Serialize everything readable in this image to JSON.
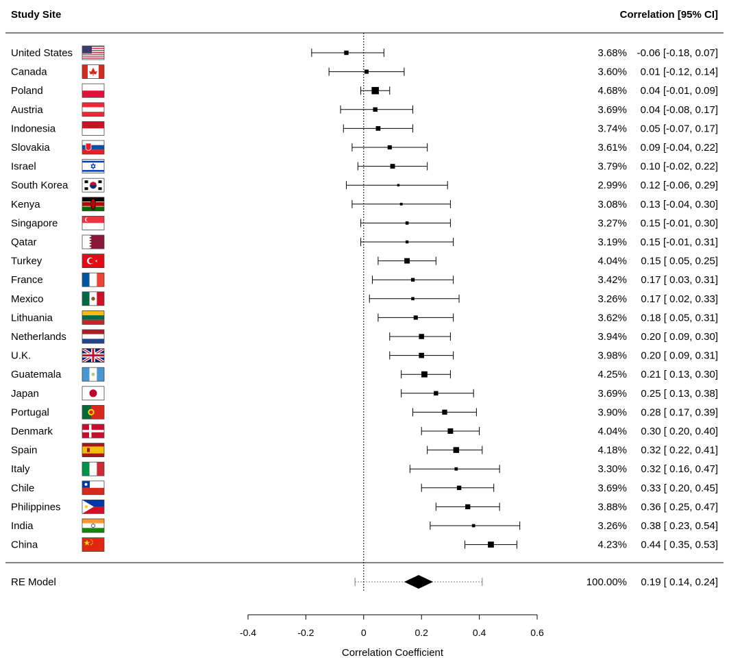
{
  "chart_data": {
    "type": "forest",
    "column_headers": {
      "left": "Study Site",
      "right": "Correlation [95% CI]"
    },
    "xlabel": "Correlation Coefficient",
    "xlim": [
      -0.4,
      0.6
    ],
    "xticks": [
      -0.4,
      -0.2,
      0,
      0.2,
      0.4,
      0.6
    ],
    "xtick_labels": [
      "-0.4",
      "-0.2",
      "0",
      "0.2",
      "0.4",
      "0.6"
    ],
    "reference_line": 0,
    "studies": [
      {
        "site": "United States",
        "flag": "united-states",
        "weight": "3.68%",
        "ci_text": "-0.06 [-0.18, 0.07]",
        "est": -0.06,
        "lo": -0.18,
        "hi": 0.07,
        "w": 3.68
      },
      {
        "site": "Canada",
        "flag": "canada",
        "weight": "3.60%",
        "ci_text": "0.01 [-0.12, 0.14]",
        "est": 0.01,
        "lo": -0.12,
        "hi": 0.14,
        "w": 3.6
      },
      {
        "site": "Poland",
        "flag": "poland",
        "weight": "4.68%",
        "ci_text": "0.04 [-0.01, 0.09]",
        "est": 0.04,
        "lo": -0.01,
        "hi": 0.09,
        "w": 4.68
      },
      {
        "site": "Austria",
        "flag": "austria",
        "weight": "3.69%",
        "ci_text": "0.04 [-0.08, 0.17]",
        "est": 0.04,
        "lo": -0.08,
        "hi": 0.17,
        "w": 3.69
      },
      {
        "site": "Indonesia",
        "flag": "indonesia",
        "weight": "3.74%",
        "ci_text": "0.05 [-0.07, 0.17]",
        "est": 0.05,
        "lo": -0.07,
        "hi": 0.17,
        "w": 3.74
      },
      {
        "site": "Slovakia",
        "flag": "slovakia",
        "weight": "3.61%",
        "ci_text": "0.09 [-0.04, 0.22]",
        "est": 0.09,
        "lo": -0.04,
        "hi": 0.22,
        "w": 3.61
      },
      {
        "site": "Israel",
        "flag": "israel",
        "weight": "3.79%",
        "ci_text": "0.10 [-0.02, 0.22]",
        "est": 0.1,
        "lo": -0.02,
        "hi": 0.22,
        "w": 3.79
      },
      {
        "site": "South Korea",
        "flag": "south-korea",
        "weight": "2.99%",
        "ci_text": "0.12 [-0.06, 0.29]",
        "est": 0.12,
        "lo": -0.06,
        "hi": 0.29,
        "w": 2.99
      },
      {
        "site": "Kenya",
        "flag": "kenya",
        "weight": "3.08%",
        "ci_text": "0.13 [-0.04, 0.30]",
        "est": 0.13,
        "lo": -0.04,
        "hi": 0.3,
        "w": 3.08
      },
      {
        "site": "Singapore",
        "flag": "singapore",
        "weight": "3.27%",
        "ci_text": "0.15 [-0.01, 0.30]",
        "est": 0.15,
        "lo": -0.01,
        "hi": 0.3,
        "w": 3.27
      },
      {
        "site": "Qatar",
        "flag": "qatar",
        "weight": "3.19%",
        "ci_text": "0.15 [-0.01, 0.31]",
        "est": 0.15,
        "lo": -0.01,
        "hi": 0.31,
        "w": 3.19
      },
      {
        "site": "Turkey",
        "flag": "turkey",
        "weight": "4.04%",
        "ci_text": "0.15 [ 0.05, 0.25]",
        "est": 0.15,
        "lo": 0.05,
        "hi": 0.25,
        "w": 4.04
      },
      {
        "site": "France",
        "flag": "france",
        "weight": "3.42%",
        "ci_text": "0.17 [ 0.03, 0.31]",
        "est": 0.17,
        "lo": 0.03,
        "hi": 0.31,
        "w": 3.42
      },
      {
        "site": "Mexico",
        "flag": "mexico",
        "weight": "3.26%",
        "ci_text": "0.17 [ 0.02, 0.33]",
        "est": 0.17,
        "lo": 0.02,
        "hi": 0.33,
        "w": 3.26
      },
      {
        "site": "Lithuania",
        "flag": "lithuania",
        "weight": "3.62%",
        "ci_text": "0.18 [ 0.05, 0.31]",
        "est": 0.18,
        "lo": 0.05,
        "hi": 0.31,
        "w": 3.62
      },
      {
        "site": "Netherlands",
        "flag": "netherlands",
        "weight": "3.94%",
        "ci_text": "0.20 [ 0.09, 0.30]",
        "est": 0.2,
        "lo": 0.09,
        "hi": 0.3,
        "w": 3.94
      },
      {
        "site": "U.K.",
        "flag": "uk",
        "weight": "3.98%",
        "ci_text": "0.20 [ 0.09, 0.31]",
        "est": 0.2,
        "lo": 0.09,
        "hi": 0.31,
        "w": 3.98
      },
      {
        "site": "Guatemala",
        "flag": "guatemala",
        "weight": "4.25%",
        "ci_text": "0.21 [ 0.13, 0.30]",
        "est": 0.21,
        "lo": 0.13,
        "hi": 0.3,
        "w": 4.25
      },
      {
        "site": "Japan",
        "flag": "japan",
        "weight": "3.69%",
        "ci_text": "0.25 [ 0.13, 0.38]",
        "est": 0.25,
        "lo": 0.13,
        "hi": 0.38,
        "w": 3.69
      },
      {
        "site": "Portugal",
        "flag": "portugal",
        "weight": "3.90%",
        "ci_text": "0.28 [ 0.17, 0.39]",
        "est": 0.28,
        "lo": 0.17,
        "hi": 0.39,
        "w": 3.9
      },
      {
        "site": "Denmark",
        "flag": "denmark",
        "weight": "4.04%",
        "ci_text": "0.30 [ 0.20, 0.40]",
        "est": 0.3,
        "lo": 0.2,
        "hi": 0.4,
        "w": 4.04
      },
      {
        "site": "Spain",
        "flag": "spain",
        "weight": "4.18%",
        "ci_text": "0.32 [ 0.22, 0.41]",
        "est": 0.32,
        "lo": 0.22,
        "hi": 0.41,
        "w": 4.18
      },
      {
        "site": "Italy",
        "flag": "italy",
        "weight": "3.30%",
        "ci_text": "0.32 [ 0.16, 0.47]",
        "est": 0.32,
        "lo": 0.16,
        "hi": 0.47,
        "w": 3.3
      },
      {
        "site": "Chile",
        "flag": "chile",
        "weight": "3.69%",
        "ci_text": "0.33 [ 0.20, 0.45]",
        "est": 0.33,
        "lo": 0.2,
        "hi": 0.45,
        "w": 3.69
      },
      {
        "site": "Philippines",
        "flag": "philippines",
        "weight": "3.88%",
        "ci_text": "0.36 [ 0.25, 0.47]",
        "est": 0.36,
        "lo": 0.25,
        "hi": 0.47,
        "w": 3.88
      },
      {
        "site": "India",
        "flag": "india",
        "weight": "3.26%",
        "ci_text": "0.38 [ 0.23, 0.54]",
        "est": 0.38,
        "lo": 0.23,
        "hi": 0.54,
        "w": 3.26
      },
      {
        "site": "China",
        "flag": "china",
        "weight": "4.23%",
        "ci_text": "0.44 [ 0.35, 0.53]",
        "est": 0.44,
        "lo": 0.35,
        "hi": 0.53,
        "w": 4.23
      }
    ],
    "summary": {
      "label": "RE Model",
      "weight": "100.00%",
      "ci_text": "0.19 [ 0.14, 0.24]",
      "est": 0.19,
      "lo": 0.14,
      "hi": 0.24,
      "pi_lo": -0.03,
      "pi_hi": 0.41
    }
  }
}
